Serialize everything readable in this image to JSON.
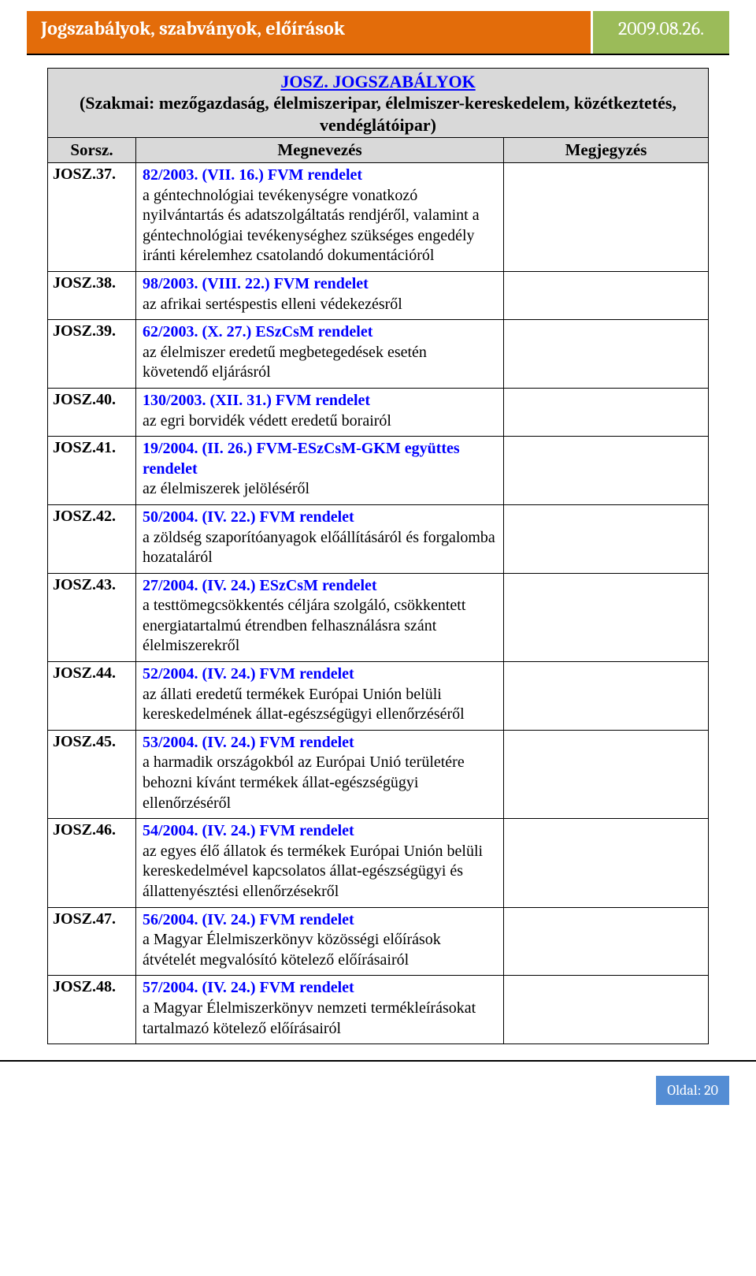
{
  "header": {
    "title": "Jogszabályok, szabványok, előírások",
    "date": "2009.08.26."
  },
  "colors": {
    "orange": "#e36c0a",
    "green": "#9bbb59",
    "gray": "#d9d9d9",
    "link": "#0000ff",
    "footer": "#548dd4"
  },
  "table": {
    "main_title": "JOSZ. JOGSZABÁLYOK",
    "subtitle": "(Szakmai: mezőgazdaság, élelmiszeripar, élelmiszer-kereskedelem, közétkeztetés, vendéglátóipar)",
    "columns": {
      "id": "Sorsz.",
      "name": "Megnevezés",
      "note": "Megjegyzés"
    },
    "rows": [
      {
        "id": "JOSZ.37.",
        "title": "82/2003. (VII. 16.) FVM rendelet",
        "desc": "a géntechnológiai tevékenységre vonatkozó nyilvántartás és adatszolgáltatás rendjéről, valamint a géntechnológiai tevékenységhez szükséges engedély iránti kérelemhez csatolandó dokumentációról"
      },
      {
        "id": "JOSZ.38.",
        "title": "98/2003. (VIII. 22.) FVM rendelet",
        "desc": "az afrikai sertéspestis elleni védekezésről"
      },
      {
        "id": "JOSZ.39.",
        "title": "62/2003. (X. 27.) ESzCsM rendelet",
        "desc": "az élelmiszer eredetű megbetegedések esetén követendő eljárásról"
      },
      {
        "id": "JOSZ.40.",
        "title": "130/2003. (XII. 31.) FVM rendelet",
        "desc": "az egri borvidék védett eredetű borairól"
      },
      {
        "id": "JOSZ.41.",
        "title": "19/2004. (II. 26.) FVM-ESzCsM-GKM együttes rendelet",
        "desc": "az élelmiszerek jelöléséről"
      },
      {
        "id": "JOSZ.42.",
        "title": "50/2004. (IV. 22.) FVM rendelet",
        "desc": "a zöldség szaporítóanyagok előállításáról és forgalomba hozataláról"
      },
      {
        "id": "JOSZ.43.",
        "title": "27/2004. (IV. 24.) ESzCsM rendelet",
        "desc": "a testtömegcsökkentés céljára szolgáló, csökkentett energiatartalmú étrendben felhasználásra szánt élelmiszerekről"
      },
      {
        "id": "JOSZ.44.",
        "title": "52/2004. (IV. 24.) FVM rendelet",
        "desc": "az állati eredetű termékek Európai Unión belüli kereskedelmének állat-egészségügyi ellenőrzéséről"
      },
      {
        "id": "JOSZ.45.",
        "title": "53/2004. (IV. 24.) FVM rendelet",
        "desc": "a harmadik országokból az Európai Unió területére behozni kívánt termékek állat-egészségügyi ellenőrzéséről"
      },
      {
        "id": "JOSZ.46.",
        "title": "54/2004. (IV. 24.) FVM rendelet",
        "desc": "az egyes élő állatok és termékek Európai Unión belüli kereskedelmével kapcsolatos állat-egészségügyi és állattenyésztési ellenőrzésekről"
      },
      {
        "id": "JOSZ.47.",
        "title": "56/2004. (IV. 24.) FVM rendelet",
        "desc": "a Magyar Élelmiszerkönyv közösségi előírások átvételét megvalósító kötelező előírásairól"
      },
      {
        "id": "JOSZ.48.",
        "title": "57/2004. (IV. 24.) FVM rendelet",
        "desc": "a Magyar Élelmiszerkönyv nemzeti termékleírásokat tartalmazó kötelező előírásairól"
      }
    ]
  },
  "footer": {
    "label": "Oldal: 20"
  }
}
